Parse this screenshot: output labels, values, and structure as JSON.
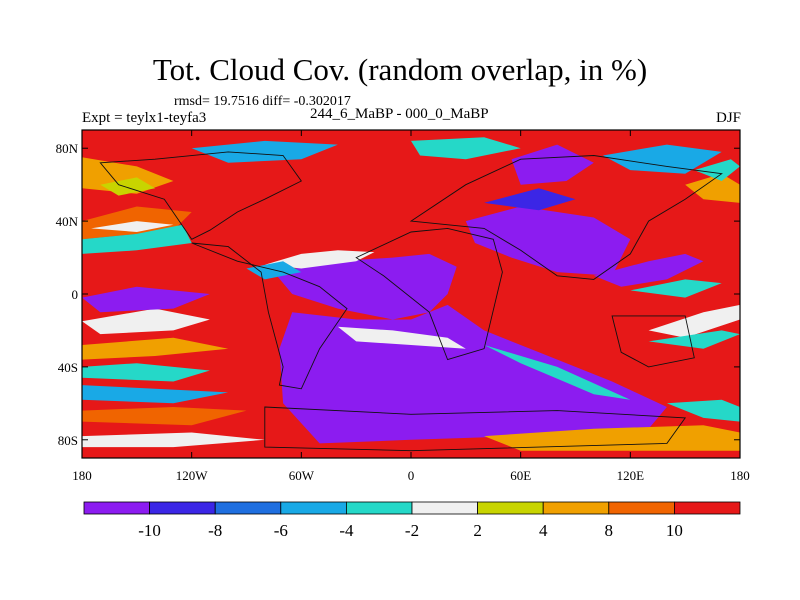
{
  "title": "Tot. Cloud Cov. (random overlap, in %)",
  "stats": "rmsd= 19.7516 diff= -0.302017",
  "expt": "Expt = teylx1-teyfa3",
  "period": "244_6_MaBP - 000_0_MaBP",
  "season": "DJF",
  "lat_labels": [
    "80N",
    "40N",
    "0",
    "40S",
    "80S"
  ],
  "lat_values": [
    80,
    40,
    0,
    -40,
    -80
  ],
  "lon_labels": [
    "180",
    "120W",
    "60W",
    "0",
    "60E",
    "120E",
    "180"
  ],
  "lon_values": [
    -180,
    -120,
    -60,
    0,
    60,
    120,
    180
  ],
  "colorbar": {
    "labels": [
      "-10",
      "-8",
      "-6",
      "-4",
      "-2",
      "2",
      "4",
      "8",
      "10"
    ],
    "colors": [
      "#8c1cf0",
      "#3b26e6",
      "#1f6fe0",
      "#19a9e6",
      "#25d8c8",
      "#f0f0f0",
      "#c8d400",
      "#f0a000",
      "#f06400",
      "#e61818"
    ]
  },
  "chart_data": {
    "type": "heatmap",
    "title": "Tot. Cloud Cov. (random overlap, in %)",
    "field": "Total cloud cover difference (%)",
    "xlim": [
      -180,
      180
    ],
    "ylim": [
      -90,
      90
    ],
    "levels": [
      -10,
      -8,
      -6,
      -4,
      -2,
      2,
      4,
      8,
      10
    ],
    "rmsd": 19.7516,
    "diff": -0.302017
  }
}
